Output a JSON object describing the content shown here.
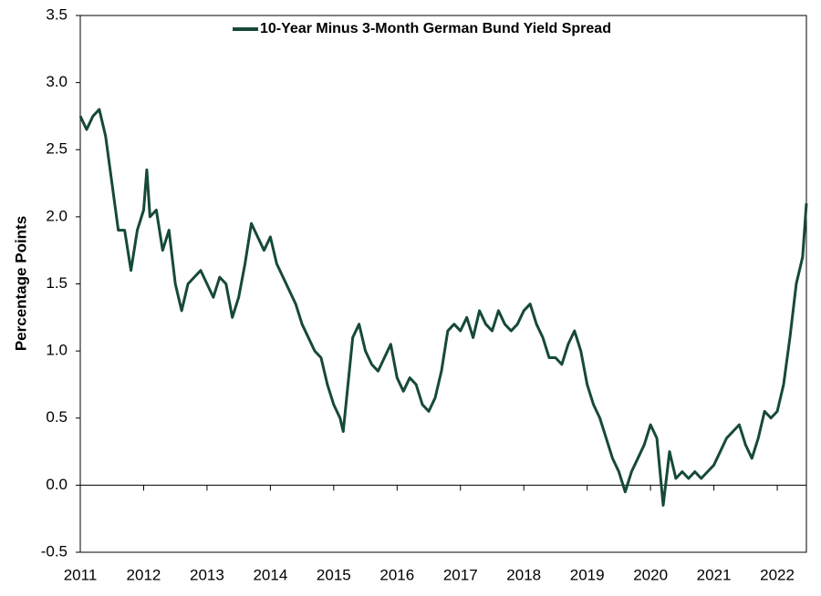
{
  "chart_data": {
    "type": "line",
    "y_label": "Percentage Points",
    "xlim": [
      2011,
      2022.46
    ],
    "xticks": [
      2011,
      2012,
      2013,
      2014,
      2015,
      2016,
      2017,
      2018,
      2019,
      2020,
      2021,
      2022
    ],
    "ylim": [
      -0.5,
      3.5
    ],
    "yticks": [
      3.5,
      {
        "value": 3,
        "label": "3.0"
      },
      2.5,
      {
        "value": 2,
        "label": "2.0"
      },
      1.5,
      {
        "value": 1,
        "label": "1.0"
      },
      0.5,
      {
        "value": 0,
        "label": "0.0"
      },
      -0.5
    ],
    "legend": "top",
    "series": [
      {
        "name": "10-Year Minus 3-Month German Bund Yield Spread",
        "color": "#16493a",
        "x": [
          2011.0,
          2011.1,
          2011.2,
          2011.3,
          2011.4,
          2011.5,
          2011.6,
          2011.7,
          2011.8,
          2011.9,
          2012.0,
          2012.05,
          2012.1,
          2012.2,
          2012.3,
          2012.4,
          2012.5,
          2012.6,
          2012.7,
          2012.8,
          2012.9,
          2013.0,
          2013.1,
          2013.2,
          2013.3,
          2013.4,
          2013.5,
          2013.6,
          2013.7,
          2013.8,
          2013.9,
          2014.0,
          2014.1,
          2014.2,
          2014.3,
          2014.4,
          2014.5,
          2014.6,
          2014.7,
          2014.8,
          2014.9,
          2015.0,
          2015.1,
          2015.15,
          2015.3,
          2015.4,
          2015.5,
          2015.6,
          2015.7,
          2015.8,
          2015.9,
          2016.0,
          2016.1,
          2016.2,
          2016.3,
          2016.4,
          2016.5,
          2016.6,
          2016.7,
          2016.8,
          2016.9,
          2017.0,
          2017.1,
          2017.2,
          2017.3,
          2017.4,
          2017.5,
          2017.6,
          2017.7,
          2017.8,
          2017.9,
          2018.0,
          2018.1,
          2018.2,
          2018.3,
          2018.4,
          2018.5,
          2018.6,
          2018.7,
          2018.8,
          2018.9,
          2019.0,
          2019.1,
          2019.2,
          2019.3,
          2019.4,
          2019.5,
          2019.6,
          2019.7,
          2019.8,
          2019.9,
          2020.0,
          2020.1,
          2020.2,
          2020.3,
          2020.4,
          2020.5,
          2020.6,
          2020.7,
          2020.8,
          2020.9,
          2021.0,
          2021.1,
          2021.2,
          2021.3,
          2021.4,
          2021.5,
          2021.6,
          2021.7,
          2021.8,
          2021.9,
          2022.0,
          2022.1,
          2022.2,
          2022.3,
          2022.4,
          2022.46
        ],
        "values": [
          2.75,
          2.65,
          2.75,
          2.8,
          2.6,
          2.25,
          1.9,
          1.9,
          1.6,
          1.9,
          2.05,
          2.35,
          2.0,
          2.05,
          1.75,
          1.9,
          1.5,
          1.3,
          1.5,
          1.55,
          1.6,
          1.5,
          1.4,
          1.55,
          1.5,
          1.25,
          1.4,
          1.65,
          1.95,
          1.85,
          1.75,
          1.85,
          1.65,
          1.55,
          1.45,
          1.35,
          1.2,
          1.1,
          1.0,
          0.95,
          0.75,
          0.6,
          0.5,
          0.4,
          1.1,
          1.2,
          1.0,
          0.9,
          0.85,
          0.95,
          1.05,
          0.8,
          0.7,
          0.8,
          0.75,
          0.6,
          0.55,
          0.65,
          0.85,
          1.15,
          1.2,
          1.15,
          1.25,
          1.1,
          1.3,
          1.2,
          1.15,
          1.3,
          1.2,
          1.15,
          1.2,
          1.3,
          1.35,
          1.2,
          1.1,
          0.95,
          0.95,
          0.9,
          1.05,
          1.15,
          1.0,
          0.75,
          0.6,
          0.5,
          0.35,
          0.2,
          0.1,
          -0.05,
          0.1,
          0.2,
          0.3,
          0.45,
          0.35,
          -0.15,
          0.25,
          0.05,
          0.1,
          0.05,
          0.1,
          0.05,
          0.1,
          0.15,
          0.25,
          0.35,
          0.4,
          0.45,
          0.3,
          0.2,
          0.35,
          0.55,
          0.5,
          0.55,
          0.75,
          1.1,
          1.5,
          1.7,
          2.1
        ]
      }
    ]
  }
}
